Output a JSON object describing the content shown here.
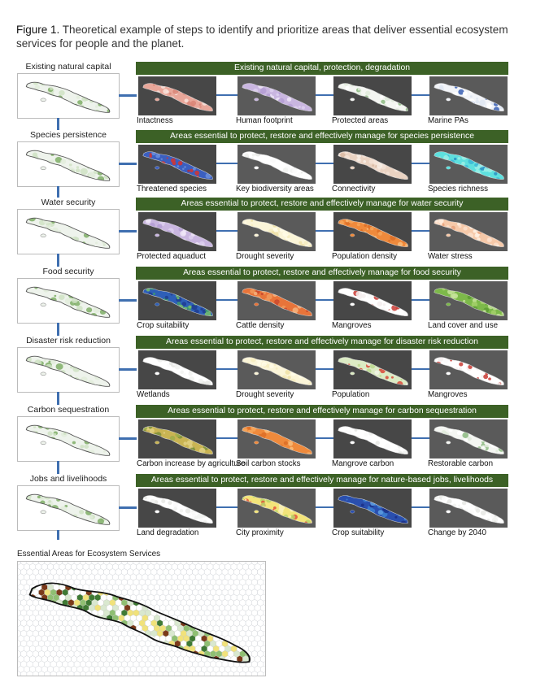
{
  "figure": {
    "title_bold": "Figure 1.",
    "title_rest": " Theoretical example of steps  to identify and prioritize areas that deliver essential ecosystem services for people and the planet."
  },
  "colors": {
    "banner": "#3c6126",
    "connector": "#3f6fb0",
    "thumb_bg": "#474747",
    "final_outline": "#111111"
  },
  "rows": [
    {
      "label": "Existing natural capital",
      "banner": "Existing natural capital, protection, degradation",
      "panels": [
        {
          "caption": "Intactness",
          "palette": "salmon"
        },
        {
          "caption": "Human footprint",
          "palette": "lavender"
        },
        {
          "caption": "Protected areas",
          "palette": "white-green"
        },
        {
          "caption": "Marine PAs",
          "palette": "blue-white"
        }
      ]
    },
    {
      "label": "Species persistence",
      "banner": "Areas essential to protect, restore and effectively manage for species persistence",
      "panels": [
        {
          "caption": "Threatened species",
          "palette": "red-blue"
        },
        {
          "caption": "Key biodiversity areas",
          "palette": "white"
        },
        {
          "caption": "Connectivity",
          "palette": "beige"
        },
        {
          "caption": "Species richness",
          "palette": "cyan"
        }
      ]
    },
    {
      "label": "Water security",
      "banner": "Areas essential to protect, restore and effectively manage for water security",
      "panels": [
        {
          "caption": "Protected aquaduct",
          "palette": "lavender"
        },
        {
          "caption": "Drought severity",
          "palette": "cream"
        },
        {
          "caption": "Population density",
          "palette": "orange"
        },
        {
          "caption": "Water stress",
          "palette": "peach"
        }
      ]
    },
    {
      "label": "Food security",
      "banner": "Areas essential to protect, restore and effectively manage for food security",
      "panels": [
        {
          "caption": "Crop suitability",
          "palette": "blue-green"
        },
        {
          "caption": "Cattle density",
          "palette": "orange-red"
        },
        {
          "caption": "Mangroves",
          "palette": "white-red"
        },
        {
          "caption": "Land cover and use",
          "palette": "green"
        }
      ]
    },
    {
      "label": "Disaster risk reduction",
      "banner": "Areas essential to protect, restore and effectively manage for disaster risk reduction",
      "panels": [
        {
          "caption": "Wetlands",
          "palette": "white"
        },
        {
          "caption": "Drought severity",
          "palette": "cream"
        },
        {
          "caption": "Population",
          "palette": "green-red"
        },
        {
          "caption": "Mangroves",
          "palette": "white-red"
        }
      ]
    },
    {
      "label": "Carbon sequestration",
      "banner": "Areas essential to protect, restore and effectively manage for carbon sequestration",
      "panels": [
        {
          "caption": "Carbon increase by agriculture",
          "palette": "olive"
        },
        {
          "caption": "Soil carbon stocks",
          "palette": "orange"
        },
        {
          "caption": "Mangrove carbon",
          "palette": "white"
        },
        {
          "caption": "Restorable carbon",
          "palette": "white-green"
        }
      ]
    },
    {
      "label": "Jobs and livelihoods",
      "banner": "Areas essential to protect, restore and effectively manage for nature-based jobs, livelihoods",
      "panels": [
        {
          "caption": "Land degradation",
          "palette": "white"
        },
        {
          "caption": "City proximity",
          "palette": "yellow-green"
        },
        {
          "caption": "Crop suitability",
          "palette": "blue"
        },
        {
          "caption": "Change by 2040",
          "palette": "white"
        }
      ]
    }
  ],
  "final": {
    "label": "Essential Areas for Ecosystem Services"
  }
}
